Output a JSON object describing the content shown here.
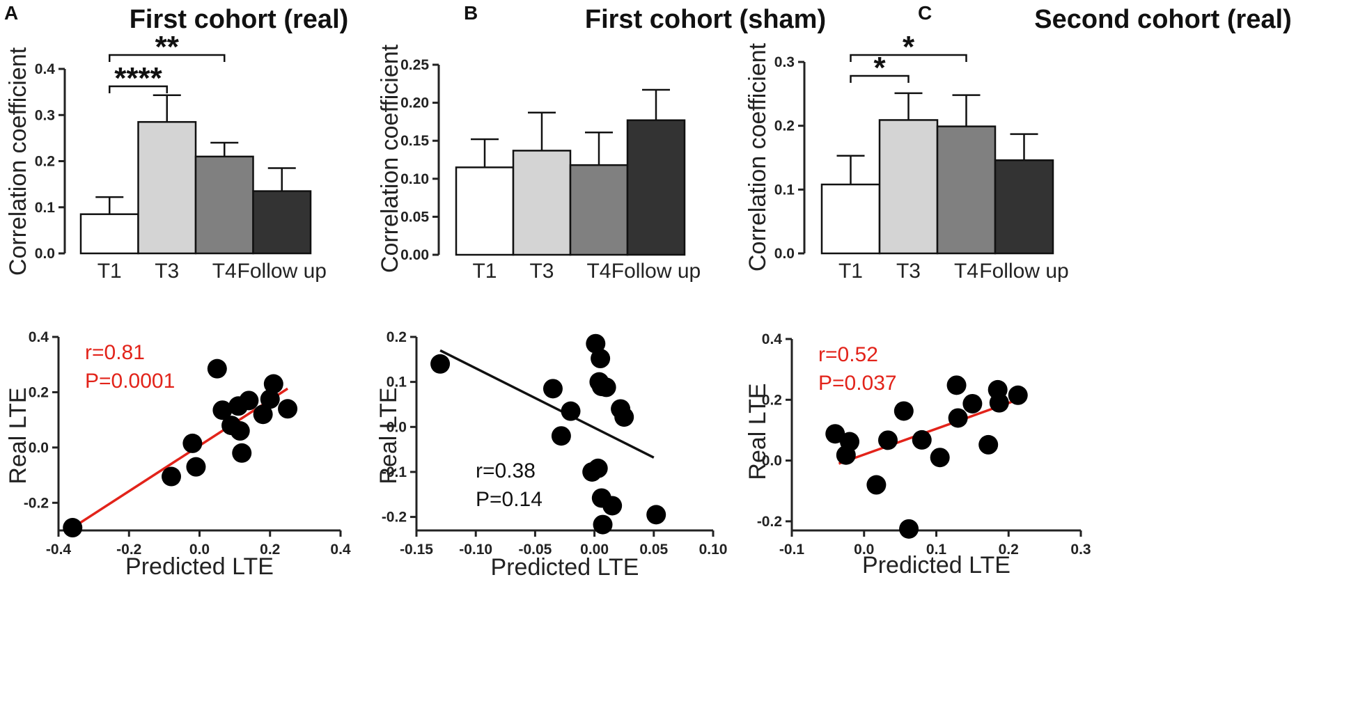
{
  "chart_data": [
    {
      "panel": "A",
      "type": "bar",
      "title": "First cohort (real)",
      "ylabel": "Correlation coefficient",
      "ylim": [
        0,
        0.4
      ],
      "yticks": [
        0,
        0.1,
        0.2,
        0.3,
        0.4
      ],
      "ytick_labels": [
        "0.0",
        "0.1",
        "0.2",
        "0.3",
        "0.4"
      ],
      "categories": [
        "T1",
        "T3",
        "T4",
        "Follow up"
      ],
      "values": [
        0.085,
        0.285,
        0.21,
        0.135
      ],
      "errors": [
        0.037,
        0.058,
        0.03,
        0.05
      ],
      "bar_colors": [
        "#ffffff",
        "#d4d4d4",
        "#808080",
        "#333333"
      ],
      "significance": [
        {
          "from": 0,
          "to": 1,
          "label": "****"
        },
        {
          "from": 0,
          "to": 2,
          "label": "**"
        }
      ]
    },
    {
      "panel": "B",
      "type": "bar",
      "title": "First cohort (sham)",
      "ylabel": "Correlation coefficient",
      "ylim": [
        0,
        0.25
      ],
      "yticks": [
        0,
        0.05,
        0.1,
        0.15,
        0.2,
        0.25
      ],
      "ytick_labels": [
        "0.00",
        "0.05",
        "0.10",
        "0.15",
        "0.20",
        "0.25"
      ],
      "categories": [
        "T1",
        "T3",
        "T4",
        "Follow up"
      ],
      "values": [
        0.115,
        0.137,
        0.118,
        0.177
      ],
      "errors": [
        0.037,
        0.05,
        0.043,
        0.04
      ],
      "bar_colors": [
        "#ffffff",
        "#d4d4d4",
        "#808080",
        "#333333"
      ],
      "significance": []
    },
    {
      "panel": "C",
      "type": "bar",
      "title": "Second cohort (real)",
      "ylabel": "Correlation coefficient",
      "ylim": [
        0,
        0.3
      ],
      "yticks": [
        0,
        0.1,
        0.2,
        0.3
      ],
      "ytick_labels": [
        "0.0",
        "0.1",
        "0.2",
        "0.3"
      ],
      "categories": [
        "T1",
        "T3",
        "T4",
        "Follow up"
      ],
      "values": [
        0.108,
        0.209,
        0.199,
        0.146
      ],
      "errors": [
        0.045,
        0.042,
        0.049,
        0.041
      ],
      "bar_colors": [
        "#ffffff",
        "#d4d4d4",
        "#808080",
        "#333333"
      ],
      "significance": [
        {
          "from": 0,
          "to": 1,
          "label": "*"
        },
        {
          "from": 0,
          "to": 2,
          "label": "*"
        }
      ]
    },
    {
      "panel": "A",
      "type": "scatter",
      "xlabel": "Predicted LTE",
      "ylabel": "Real LTE",
      "xlim": [
        -0.4,
        0.4
      ],
      "ylim": [
        -0.3,
        0.4
      ],
      "xticks": [
        -0.4,
        -0.2,
        0,
        0.2,
        0.4
      ],
      "xtick_labels": [
        "-0.4",
        "-0.2",
        "0.0",
        "0.2",
        "0.4"
      ],
      "yticks": [
        -0.2,
        0,
        0.2,
        0.4
      ],
      "ytick_labels": [
        "-0.2",
        "0.0",
        "0.2",
        "0.4"
      ],
      "x": [
        -0.36,
        -0.08,
        -0.02,
        -0.01,
        0.05,
        0.065,
        0.09,
        0.11,
        0.115,
        0.12,
        0.14,
        0.18,
        0.2,
        0.21,
        0.25
      ],
      "y": [
        -0.29,
        -0.105,
        0.015,
        -0.07,
        0.285,
        0.135,
        0.08,
        0.15,
        0.06,
        -0.02,
        0.17,
        0.12,
        0.175,
        0.23,
        0.14
      ],
      "fit": {
        "x": [
          -0.36,
          0.25
        ],
        "y": [
          -0.29,
          0.213
        ],
        "color": "#e2231a"
      },
      "annotation": {
        "lines": [
          "r=0.81",
          "P=0.0001"
        ],
        "color": "#e2231a"
      }
    },
    {
      "panel": "B",
      "type": "scatter",
      "xlabel": "Predicted LTE",
      "ylabel": "Real LTE",
      "xlim": [
        -0.15,
        0.1
      ],
      "ylim": [
        -0.23,
        0.2
      ],
      "xticks": [
        -0.15,
        -0.1,
        -0.05,
        0,
        0.05,
        0.1
      ],
      "xtick_labels": [
        "-0.15",
        "-0.10",
        "-0.05",
        "0.00",
        "0.05",
        "0.10"
      ],
      "yticks": [
        -0.2,
        -0.1,
        0,
        0.1,
        0.2
      ],
      "ytick_labels": [
        "-0.2",
        "-0.1",
        "0.0",
        "0.1",
        "0.2"
      ],
      "x": [
        -0.13,
        -0.035,
        -0.02,
        -0.028,
        0.001,
        0.005,
        0.004,
        0.006,
        0.01,
        -0.002,
        0.003,
        0.006,
        0.007,
        0.015,
        0.022,
        0.025,
        0.052
      ],
      "y": [
        0.14,
        0.085,
        0.035,
        -0.02,
        0.185,
        0.152,
        0.1,
        0.09,
        0.088,
        -0.1,
        -0.092,
        -0.158,
        -0.217,
        -0.175,
        0.04,
        0.022,
        -0.195
      ],
      "fit": {
        "x": [
          -0.13,
          0.05
        ],
        "y": [
          0.17,
          -0.068
        ],
        "color": "#111111"
      },
      "annotation": {
        "lines": [
          "r=0.38",
          "P=0.14"
        ],
        "color": "#111111"
      }
    },
    {
      "panel": "C",
      "type": "scatter",
      "xlabel": "Predicted LTE",
      "ylabel": "Real LTE",
      "xlim": [
        -0.1,
        0.3
      ],
      "ylim": [
        -0.23,
        0.4
      ],
      "xticks": [
        -0.1,
        0,
        0.1,
        0.2,
        0.3
      ],
      "xtick_labels": [
        "-0.1",
        "0.0",
        "0.1",
        "0.2",
        "0.3"
      ],
      "yticks": [
        -0.2,
        0,
        0.2,
        0.4
      ],
      "ytick_labels": [
        "-0.2",
        "0.0",
        "0.2",
        "0.4"
      ],
      "x": [
        -0.04,
        -0.025,
        -0.02,
        0.017,
        0.033,
        0.055,
        0.062,
        0.08,
        0.105,
        0.128,
        0.13,
        0.15,
        0.172,
        0.185,
        0.187,
        0.213
      ],
      "y": [
        0.088,
        0.018,
        0.062,
        -0.08,
        0.067,
        0.163,
        -0.225,
        0.068,
        0.01,
        0.248,
        0.14,
        0.187,
        0.052,
        0.233,
        0.19,
        0.215
      ],
      "fit": {
        "x": [
          -0.035,
          0.21
        ],
        "y": [
          -0.01,
          0.198
        ],
        "color": "#e2231a"
      },
      "annotation": {
        "lines": [
          "r=0.52",
          "P=0.037"
        ],
        "color": "#e2231a"
      }
    }
  ]
}
